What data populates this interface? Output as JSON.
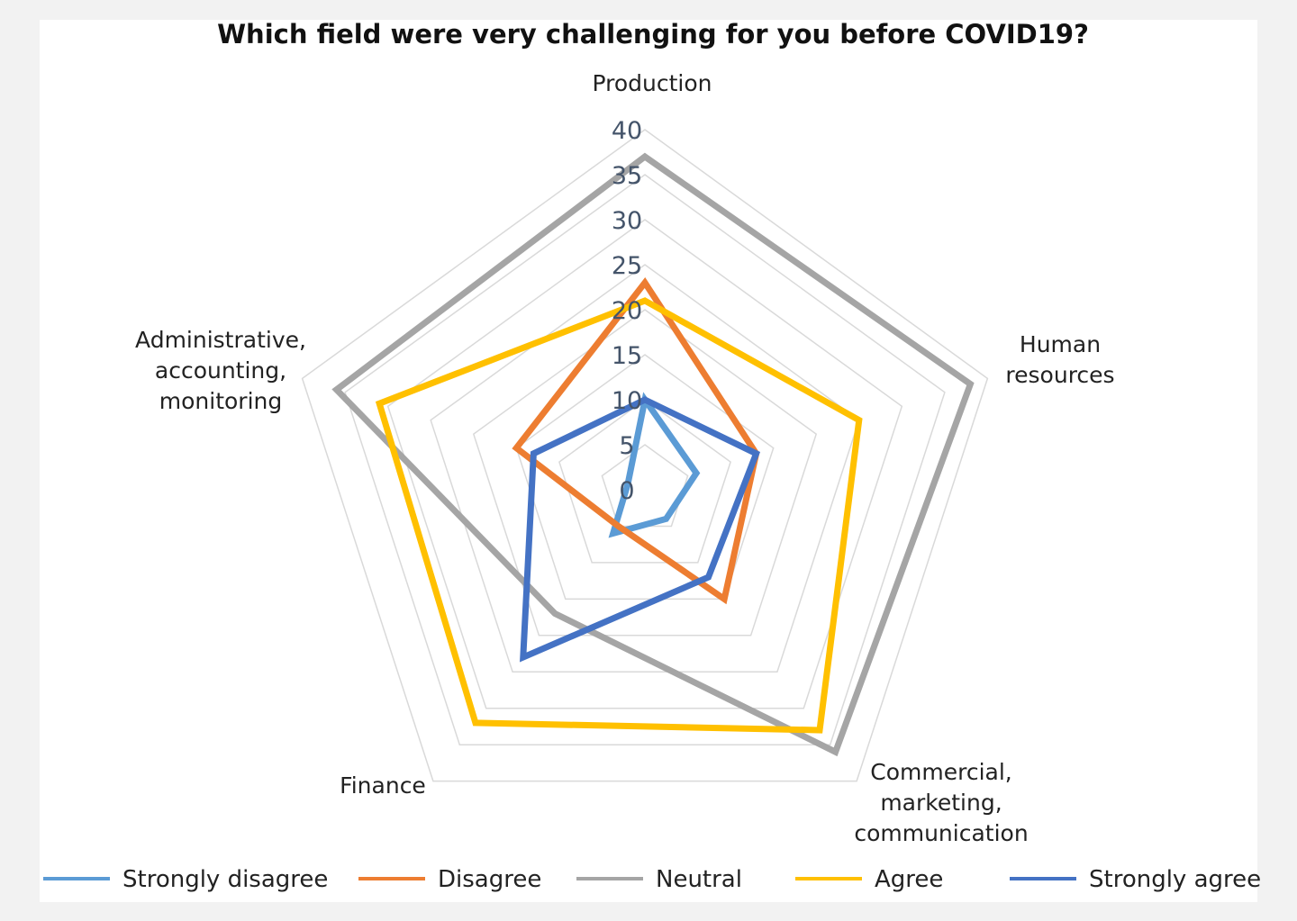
{
  "chart_data": {
    "type": "radar",
    "title": "Which field were very challenging for you before COVID19?",
    "categories": [
      [
        "Production"
      ],
      [
        "Human",
        "resources"
      ],
      [
        "Commercial,",
        "marketing,",
        "communication"
      ],
      [
        "Finance"
      ],
      [
        "Administrative,",
        "accounting,",
        "monitoring"
      ]
    ],
    "rlim": [
      0,
      40
    ],
    "ticks": [
      "0",
      "5",
      "10",
      "15",
      "20",
      "25",
      "30",
      "35",
      "40"
    ],
    "series": [
      {
        "name": "Strongly disagree",
        "color": "#5b9bd5",
        "values": [
          10,
          6,
          4,
          6,
          2
        ]
      },
      {
        "name": "Disagree",
        "color": "#ed7d31",
        "values": [
          23,
          13,
          15,
          5,
          15
        ]
      },
      {
        "name": "Neutral",
        "color": "#a5a5a5",
        "values": [
          37,
          38,
          36,
          17,
          36
        ]
      },
      {
        "name": "Agree",
        "color": "#ffc000",
        "values": [
          21,
          25,
          33,
          32,
          31
        ]
      },
      {
        "name": "Strongly agree",
        "color": "#4472c4",
        "values": [
          10,
          13,
          12,
          23,
          13
        ]
      }
    ],
    "legend": "bottom",
    "grid": true
  }
}
